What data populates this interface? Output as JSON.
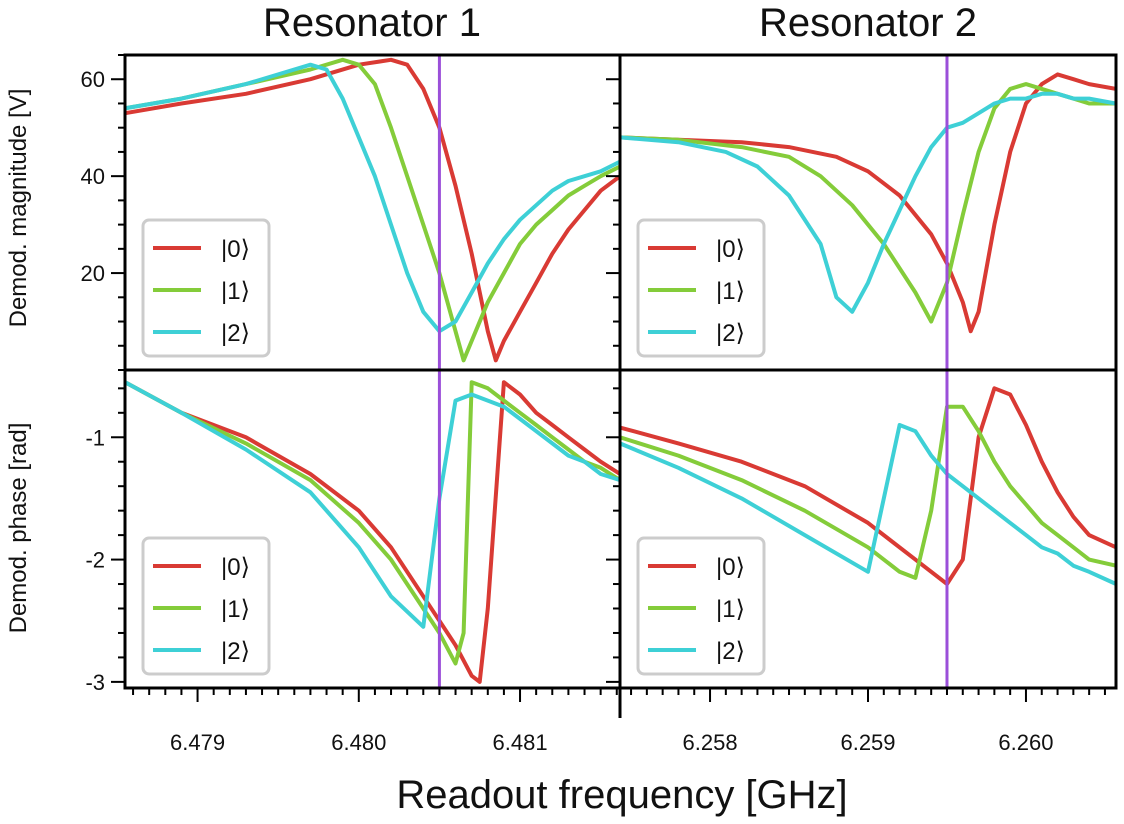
{
  "figure": {
    "col_titles": [
      "Resonator 1",
      "Resonator 2"
    ],
    "xlabel": "Readout frequency [GHz]",
    "ylabels": [
      "Demod. magnitude [V]",
      "Demod. phase [rad]"
    ],
    "legend_labels": [
      "|0⟩",
      "|1⟩",
      "|2⟩"
    ],
    "colors": {
      "state0": "#d93a34",
      "state1": "#84cc3a",
      "state2": "#3ed0d6",
      "marker": "#9b4fd9",
      "frame": "#000000",
      "legend_border": "#cccccc"
    }
  },
  "chart_data": [
    {
      "type": "line",
      "panel": "resonator-1-magnitude",
      "title": "Resonator 1",
      "xlabel": "",
      "ylabel": "Demod. magnitude [V]",
      "xlim": [
        6.47855,
        6.48162
      ],
      "ylim": [
        0,
        65
      ],
      "yticks": [
        20,
        40,
        60
      ],
      "xticks": [],
      "marker_x": 6.4805,
      "legend": "lower-left",
      "grid": false,
      "series": [
        {
          "name": "|0⟩",
          "x": [
            6.47855,
            6.4789,
            6.4793,
            6.4797,
            6.48,
            6.4802,
            6.4803,
            6.4804,
            6.4805,
            6.4806,
            6.4807,
            6.4808,
            6.48085,
            6.4809,
            6.481,
            6.4811,
            6.4812,
            6.4813,
            6.4814,
            6.4815,
            6.48162
          ],
          "y": [
            53,
            55,
            57,
            60,
            63,
            64,
            63,
            58,
            50,
            38,
            24,
            8,
            2,
            6,
            12,
            18,
            24,
            29,
            33,
            37,
            40
          ]
        },
        {
          "name": "|1⟩",
          "x": [
            6.47855,
            6.4789,
            6.4793,
            6.4797,
            6.4799,
            6.48,
            6.4801,
            6.4802,
            6.4803,
            6.4804,
            6.4805,
            6.4806,
            6.48065,
            6.4807,
            6.4808,
            6.4809,
            6.481,
            6.4811,
            6.4812,
            6.4813,
            6.4814,
            6.4815,
            6.48162
          ],
          "y": [
            54,
            56,
            59,
            62,
            64,
            63,
            59,
            50,
            40,
            30,
            20,
            8,
            2,
            6,
            14,
            20,
            26,
            30,
            33,
            36,
            38,
            40,
            42
          ]
        },
        {
          "name": "|2⟩",
          "x": [
            6.47855,
            6.4789,
            6.4793,
            6.4796,
            6.4797,
            6.4798,
            6.4799,
            6.48,
            6.4801,
            6.4802,
            6.4803,
            6.4804,
            6.4805,
            6.4806,
            6.4807,
            6.4808,
            6.4809,
            6.481,
            6.4811,
            6.4812,
            6.4813,
            6.4814,
            6.4815,
            6.48162
          ],
          "y": [
            54,
            56,
            59,
            62,
            63,
            62,
            56,
            48,
            40,
            30,
            20,
            12,
            8,
            10,
            16,
            22,
            27,
            31,
            34,
            37,
            39,
            40,
            41,
            43
          ]
        }
      ]
    },
    {
      "type": "line",
      "panel": "resonator-2-magnitude",
      "title": "Resonator 2",
      "xlabel": "",
      "ylabel": "",
      "xlim": [
        6.25743,
        6.26057
      ],
      "ylim": [
        0,
        65
      ],
      "yticks": [
        20,
        40,
        60
      ],
      "xticks": [],
      "marker_x": 6.2595,
      "legend": "lower-left",
      "grid": false,
      "series": [
        {
          "name": "|0⟩",
          "x": [
            6.25743,
            6.2578,
            6.2582,
            6.2585,
            6.2588,
            6.259,
            6.2592,
            6.2594,
            6.2595,
            6.2596,
            6.25965,
            6.2597,
            6.2598,
            6.2599,
            6.26,
            6.2601,
            6.2602,
            6.2603,
            6.2604,
            6.26057
          ],
          "y": [
            48,
            47.5,
            47,
            46,
            44,
            41,
            36,
            28,
            22,
            14,
            8,
            12,
            30,
            45,
            55,
            59,
            61,
            60,
            59,
            58
          ]
        },
        {
          "name": "|1⟩",
          "x": [
            6.25743,
            6.2578,
            6.2582,
            6.2585,
            6.2587,
            6.2589,
            6.2591,
            6.2593,
            6.2594,
            6.2595,
            6.2596,
            6.2597,
            6.2598,
            6.2599,
            6.26,
            6.2601,
            6.2602,
            6.2603,
            6.2604,
            6.26057
          ],
          "y": [
            48,
            47.5,
            46,
            44,
            40,
            34,
            26,
            16,
            10,
            18,
            32,
            45,
            54,
            58,
            59,
            58,
            57,
            56,
            55,
            55
          ]
        },
        {
          "name": "|2⟩",
          "x": [
            6.25743,
            6.2578,
            6.2581,
            6.2583,
            6.2585,
            6.2587,
            6.2588,
            6.2589,
            6.259,
            6.2591,
            6.2592,
            6.2593,
            6.2594,
            6.2595,
            6.2596,
            6.2597,
            6.2598,
            6.2599,
            6.26,
            6.2601,
            6.2602,
            6.2603,
            6.2604,
            6.26057
          ],
          "y": [
            48,
            47,
            45,
            42,
            36,
            26,
            15,
            12,
            18,
            26,
            33,
            40,
            46,
            50,
            51,
            53,
            55,
            56,
            56,
            57,
            57,
            56,
            56,
            55
          ]
        }
      ]
    },
    {
      "type": "line",
      "panel": "resonator-1-phase",
      "title": "",
      "xlabel": "",
      "ylabel": "Demod. phase [rad]",
      "xlim": [
        6.47855,
        6.48162
      ],
      "ylim": [
        -3.05,
        -0.45
      ],
      "yticks": [
        -1,
        -2,
        -3
      ],
      "xticks": [
        6.479,
        6.48,
        6.481
      ],
      "marker_x": 6.4805,
      "legend": "lower-left",
      "grid": false,
      "series": [
        {
          "name": "|0⟩",
          "x": [
            6.47855,
            6.4789,
            6.4793,
            6.4797,
            6.48,
            6.4802,
            6.4804,
            6.4806,
            6.4807,
            6.48075,
            6.4808,
            6.4809,
            6.481,
            6.4811,
            6.4812,
            6.4813,
            6.4814,
            6.4815,
            6.48162
          ],
          "y": [
            -0.55,
            -0.8,
            -1.0,
            -1.3,
            -1.6,
            -1.9,
            -2.3,
            -2.7,
            -2.95,
            -3.0,
            -2.4,
            -0.55,
            -0.65,
            -0.8,
            -0.9,
            -1.0,
            -1.1,
            -1.2,
            -1.3
          ]
        },
        {
          "name": "|1⟩",
          "x": [
            6.47855,
            6.4789,
            6.4793,
            6.4797,
            6.48,
            6.4802,
            6.4804,
            6.4805,
            6.4806,
            6.48065,
            6.4807,
            6.4808,
            6.4809,
            6.481,
            6.4811,
            6.4812,
            6.4813,
            6.4814,
            6.4815,
            6.48162
          ],
          "y": [
            -0.55,
            -0.8,
            -1.05,
            -1.35,
            -1.7,
            -2.0,
            -2.4,
            -2.6,
            -2.85,
            -2.6,
            -0.55,
            -0.6,
            -0.7,
            -0.8,
            -0.9,
            -1.0,
            -1.1,
            -1.2,
            -1.25,
            -1.35
          ]
        },
        {
          "name": "|2⟩",
          "x": [
            6.47855,
            6.4789,
            6.4793,
            6.4797,
            6.48,
            6.4802,
            6.4804,
            6.4805,
            6.4806,
            6.4807,
            6.4808,
            6.4809,
            6.481,
            6.4811,
            6.4812,
            6.4813,
            6.4814,
            6.4815,
            6.48162
          ],
          "y": [
            -0.55,
            -0.8,
            -1.1,
            -1.45,
            -1.9,
            -2.3,
            -2.55,
            -1.5,
            -0.7,
            -0.65,
            -0.7,
            -0.75,
            -0.85,
            -0.95,
            -1.05,
            -1.15,
            -1.2,
            -1.3,
            -1.35
          ]
        }
      ]
    },
    {
      "type": "line",
      "panel": "resonator-2-phase",
      "title": "",
      "xlabel": "",
      "ylabel": "",
      "xlim": [
        6.25743,
        6.26057
      ],
      "ylim": [
        -3.05,
        -0.45
      ],
      "yticks": [
        -1,
        -2,
        -3
      ],
      "xticks": [
        6.258,
        6.259,
        6.26
      ],
      "marker_x": 6.2595,
      "legend": "lower-left",
      "grid": false,
      "series": [
        {
          "name": "|0⟩",
          "x": [
            6.25743,
            6.2578,
            6.2582,
            6.2586,
            6.259,
            6.2593,
            6.2595,
            6.2596,
            6.2597,
            6.2598,
            6.2599,
            6.26,
            6.2601,
            6.2602,
            6.2603,
            6.2604,
            6.26057
          ],
          "y": [
            -0.92,
            -1.05,
            -1.2,
            -1.4,
            -1.7,
            -2.0,
            -2.2,
            -2.0,
            -1.0,
            -0.6,
            -0.65,
            -0.9,
            -1.2,
            -1.45,
            -1.65,
            -1.8,
            -1.9
          ]
        },
        {
          "name": "|1⟩",
          "x": [
            6.25743,
            6.2578,
            6.2582,
            6.2586,
            6.259,
            6.2592,
            6.2593,
            6.2594,
            6.2595,
            6.2596,
            6.2597,
            6.2598,
            6.2599,
            6.26,
            6.2601,
            6.2602,
            6.2603,
            6.2604,
            6.26057
          ],
          "y": [
            -1.0,
            -1.15,
            -1.35,
            -1.6,
            -1.9,
            -2.1,
            -2.15,
            -1.6,
            -0.75,
            -0.75,
            -0.95,
            -1.2,
            -1.4,
            -1.55,
            -1.7,
            -1.8,
            -1.9,
            -2.0,
            -2.05
          ]
        },
        {
          "name": "|2⟩",
          "x": [
            6.25743,
            6.2578,
            6.2582,
            6.2586,
            6.259,
            6.2591,
            6.2592,
            6.2593,
            6.2594,
            6.2595,
            6.2596,
            6.2597,
            6.2598,
            6.2599,
            6.26,
            6.2601,
            6.2602,
            6.2603,
            6.2604,
            6.26057
          ],
          "y": [
            -1.05,
            -1.25,
            -1.5,
            -1.8,
            -2.1,
            -1.5,
            -0.9,
            -0.95,
            -1.15,
            -1.3,
            -1.4,
            -1.5,
            -1.6,
            -1.7,
            -1.8,
            -1.9,
            -1.95,
            -2.05,
            -2.1,
            -2.2
          ]
        }
      ]
    }
  ]
}
